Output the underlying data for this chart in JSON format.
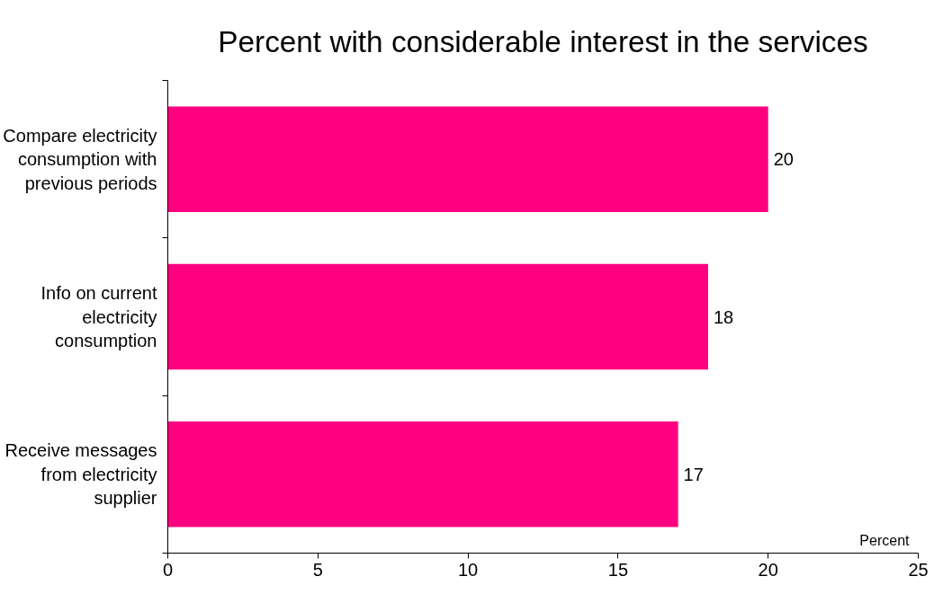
{
  "chart_data": {
    "type": "bar",
    "orientation": "horizontal",
    "title": "Percent with considerable interest in the services",
    "xlabel": "Percent",
    "categories": [
      "Compare electricity consumption with previous periods",
      "Info on current electricity consumption",
      "Receive messages from electricity supplier"
    ],
    "values": [
      20,
      18,
      17
    ],
    "color": "#ff0080",
    "data_labels": true,
    "xlim": [
      0,
      25
    ],
    "xticks": [
      0,
      5,
      10,
      15,
      20,
      25
    ],
    "grid": false
  }
}
